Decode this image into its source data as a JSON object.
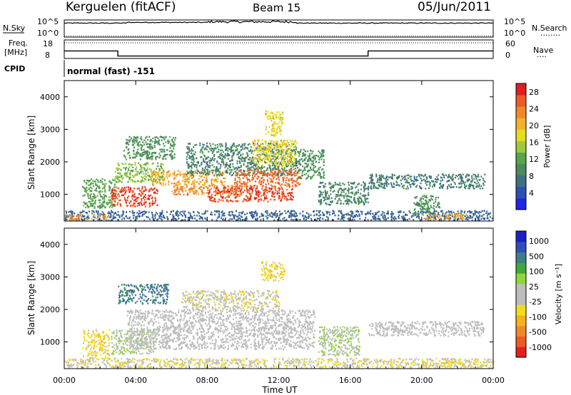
{
  "header": {
    "station": "Kerguelen (fitACF)",
    "beam": "Beam 15",
    "date": "05/Jun/2011"
  },
  "nsky_panel": {
    "label": "N.Sky",
    "left_ticks": [
      "10^5",
      "10^0"
    ],
    "right_ticks": [
      "10^5",
      "10^0"
    ],
    "right_label": "N.Search",
    "right_legend_dots": "........"
  },
  "freq_panel": {
    "label_line1": "Freq.",
    "label_line2": "[MHz]",
    "left_ticks": [
      "18",
      "8"
    ],
    "right_ticks": [
      "60",
      "0"
    ],
    "right_label": "Nave",
    "right_legend_dots": "....",
    "freq_steps": [
      {
        "t0": 0.0,
        "t1": 3.0,
        "mhz": 12.0
      },
      {
        "t0": 3.0,
        "t1": 17.0,
        "mhz": 9.0
      },
      {
        "t0": 17.0,
        "t1": 24.0,
        "mhz": 12.0
      }
    ],
    "nave_level": 60
  },
  "cpid": {
    "label": "CPID",
    "value": "normal (fast) -151"
  },
  "chart_data": [
    {
      "type": "heatmap",
      "title": "",
      "ylabel": "Slant Range [km]",
      "xlabel": "",
      "y_ticks": [
        "1000",
        "2000",
        "3000",
        "4000"
      ],
      "x_range_hours": [
        0,
        24
      ],
      "y_range_km": [
        180,
        4500
      ],
      "colorbar": {
        "label": "Power [dB]",
        "ticks": [
          "4",
          "8",
          "12",
          "16",
          "20",
          "24",
          "28"
        ],
        "range": [
          0,
          30
        ],
        "colors": [
          "#1f24e6",
          "#2e4fb3",
          "#3e6f86",
          "#4a8a5c",
          "#56a54a",
          "#9fc93a",
          "#e6dc1e",
          "#f4b22a",
          "#f0882a",
          "#ec5b24",
          "#e21e1e"
        ]
      },
      "regions": [
        {
          "t0": 0.0,
          "t1": 24.0,
          "r0": 220,
          "r1": 520,
          "v": 6
        },
        {
          "t0": 0.0,
          "t1": 2.5,
          "r0": 240,
          "r1": 400,
          "v": 22
        },
        {
          "t0": 1.0,
          "t1": 2.8,
          "r0": 600,
          "r1": 1500,
          "v": 12
        },
        {
          "t0": 2.6,
          "t1": 5.2,
          "r0": 650,
          "r1": 1250,
          "v": 27
        },
        {
          "t0": 2.8,
          "t1": 5.6,
          "r0": 1400,
          "r1": 2000,
          "v": 14
        },
        {
          "t0": 3.3,
          "t1": 6.2,
          "r0": 2100,
          "r1": 2800,
          "v": 10
        },
        {
          "t0": 4.8,
          "t1": 9.0,
          "r0": 1300,
          "r1": 1750,
          "v": 21
        },
        {
          "t0": 6.0,
          "t1": 10.0,
          "r0": 1000,
          "r1": 1300,
          "v": 23
        },
        {
          "t0": 6.8,
          "t1": 13.0,
          "r0": 1600,
          "r1": 2600,
          "v": 9
        },
        {
          "t0": 8.0,
          "t1": 12.8,
          "r0": 800,
          "r1": 1250,
          "v": 27
        },
        {
          "t0": 9.5,
          "t1": 13.2,
          "r0": 1250,
          "r1": 1800,
          "v": 25
        },
        {
          "t0": 10.5,
          "t1": 13.0,
          "r0": 1900,
          "r1": 2700,
          "v": 18
        },
        {
          "t0": 11.2,
          "t1": 12.2,
          "r0": 2800,
          "r1": 3600,
          "v": 18
        },
        {
          "t0": 13.0,
          "t1": 14.5,
          "r0": 1500,
          "r1": 2400,
          "v": 10
        },
        {
          "t0": 14.2,
          "t1": 17.0,
          "r0": 700,
          "r1": 1400,
          "v": 9
        },
        {
          "t0": 17.0,
          "t1": 23.5,
          "r0": 1200,
          "r1": 1650,
          "v": 8
        },
        {
          "t0": 19.5,
          "t1": 21.0,
          "r0": 400,
          "r1": 1000,
          "v": 10
        },
        {
          "t0": 20.0,
          "t1": 22.5,
          "r0": 250,
          "r1": 420,
          "v": 22
        }
      ]
    },
    {
      "type": "heatmap",
      "title": "",
      "ylabel": "Slant Range [km]",
      "xlabel": "Time UT",
      "y_ticks": [
        "1000",
        "2000",
        "3000",
        "4000"
      ],
      "x_ticks": [
        "00:00",
        "04:00",
        "08:00",
        "12:00",
        "16:00",
        "20:00",
        "00:00"
      ],
      "x_range_hours": [
        0,
        24
      ],
      "y_range_km": [
        180,
        4500
      ],
      "colorbar": {
        "label": "Velocity [m s⁻¹]",
        "ticks": [
          "1000",
          "500",
          "100",
          "25",
          "-25",
          "-100",
          "-500",
          "-1000"
        ],
        "range": [
          -1200,
          1200
        ],
        "colors": [
          "#e61e1e",
          "#ee5a22",
          "#f0882a",
          "#f6b21e",
          "#f2dc1e",
          "#bdbdbd",
          "#bdbdbd",
          "#8fd63a",
          "#3fa83c",
          "#3e7d8a",
          "#2f4fb6",
          "#1a20c8"
        ]
      },
      "regions": [
        {
          "t0": 0.0,
          "t1": 24.0,
          "r0": 220,
          "r1": 520,
          "v": -180
        },
        {
          "t0": 1.0,
          "t1": 2.5,
          "r0": 500,
          "r1": 1400,
          "v": -300
        },
        {
          "t0": 2.6,
          "t1": 5.0,
          "r0": 650,
          "r1": 1400,
          "v": 150
        },
        {
          "t0": 3.0,
          "t1": 5.8,
          "r0": 2200,
          "r1": 2800,
          "v": 700
        },
        {
          "t0": 3.5,
          "t1": 14.0,
          "r0": 800,
          "r1": 2000,
          "v": 0
        },
        {
          "t0": 6.5,
          "t1": 12.0,
          "r0": 2000,
          "r1": 2600,
          "v": -150
        },
        {
          "t0": 11.0,
          "t1": 12.3,
          "r0": 2900,
          "r1": 3500,
          "v": -300
        },
        {
          "t0": 14.2,
          "t1": 16.5,
          "r0": 600,
          "r1": 1500,
          "v": 200
        },
        {
          "t0": 17.0,
          "t1": 23.5,
          "r0": 1200,
          "r1": 1650,
          "v": 0
        },
        {
          "t0": 20.0,
          "t1": 23.0,
          "r0": 250,
          "r1": 420,
          "v": -200
        }
      ]
    }
  ]
}
